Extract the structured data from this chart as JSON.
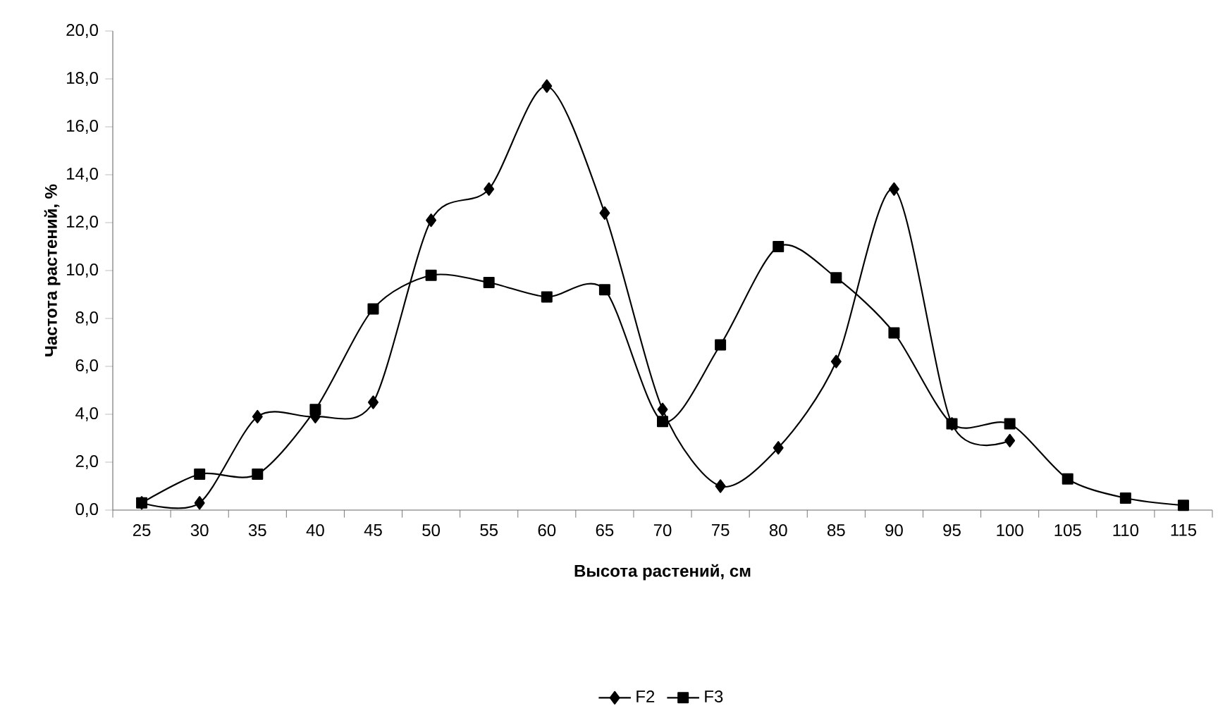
{
  "chart_data": {
    "type": "line",
    "xlabel": "Высота растений, см",
    "ylabel": "Частота растений, %",
    "categories": [
      "25",
      "30",
      "35",
      "40",
      "45",
      "50",
      "55",
      "60",
      "65",
      "70",
      "75",
      "80",
      "85",
      "90",
      "95",
      "100",
      "105",
      "110",
      "115"
    ],
    "series": [
      {
        "name": "F2",
        "color": "#000000",
        "marker": "diamond",
        "values": [
          0.3,
          0.3,
          3.9,
          3.9,
          4.5,
          12.1,
          13.4,
          17.7,
          12.4,
          4.2,
          1.0,
          2.6,
          6.2,
          13.4,
          3.6,
          2.9,
          null,
          null,
          null
        ]
      },
      {
        "name": "F3",
        "color": "#000000",
        "marker": "square",
        "values": [
          0.3,
          1.5,
          1.5,
          4.2,
          8.4,
          9.8,
          9.5,
          8.9,
          9.2,
          3.7,
          6.9,
          11.0,
          9.7,
          7.4,
          3.6,
          3.6,
          1.3,
          0.5,
          0.2
        ]
      }
    ],
    "ylim": [
      0,
      20
    ],
    "yticks": [
      {
        "value": 0,
        "label": "0,0"
      },
      {
        "value": 2,
        "label": "2,0"
      },
      {
        "value": 4,
        "label": "4,0"
      },
      {
        "value": 6,
        "label": "6,0"
      },
      {
        "value": 8,
        "label": "8,0"
      },
      {
        "value": 10,
        "label": "10,0"
      },
      {
        "value": 12,
        "label": "12,0"
      },
      {
        "value": 14,
        "label": "14,0"
      },
      {
        "value": 16,
        "label": "16,0"
      },
      {
        "value": 18,
        "label": "18,0"
      },
      {
        "value": 20,
        "label": "20,0"
      }
    ],
    "legend": "bottom",
    "line_style": "solid"
  }
}
